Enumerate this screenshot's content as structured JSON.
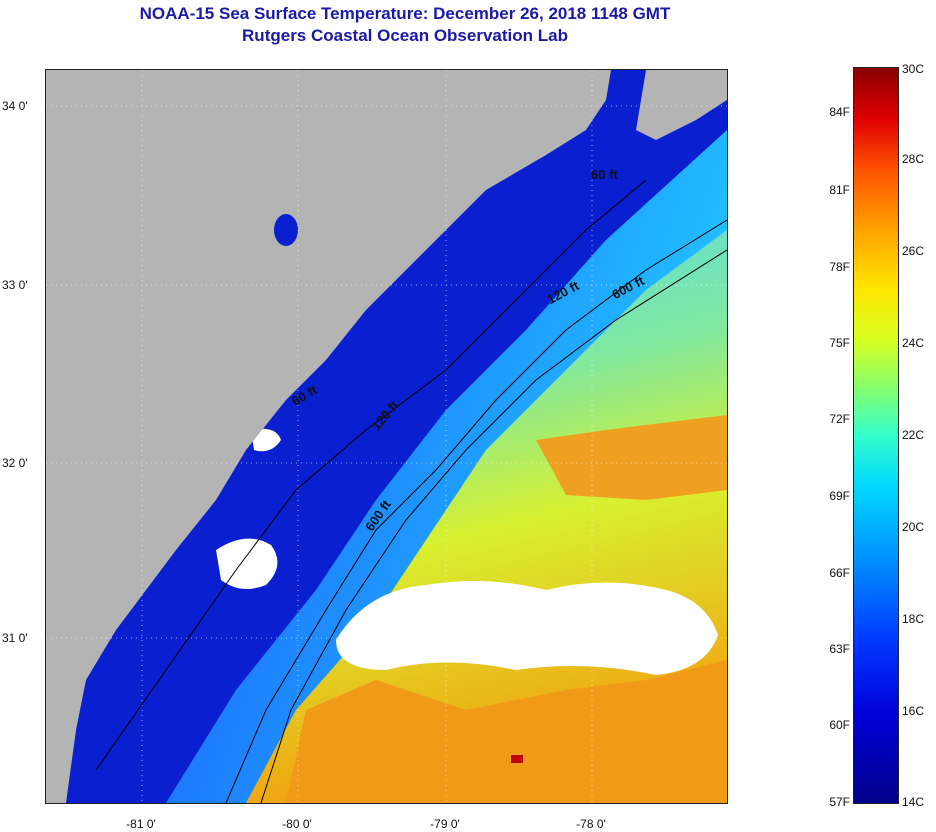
{
  "header": {
    "title": "NOAA-15 Sea Surface Temperature:  December 26, 2018 1148 GMT",
    "subtitle": "Rutgers Coastal Ocean Observation Lab"
  },
  "map": {
    "lat_labels": [
      "34 0'",
      "33 0'",
      "32 0'",
      "31 0'"
    ],
    "lon_labels": [
      "-81 0'",
      "-80 0'",
      "-79 0'",
      "-78 0'"
    ],
    "isobath_labels": [
      "60 ft",
      "120 ft",
      "600 ft",
      "60 ft",
      "120 ft",
      "600 ft"
    ],
    "colors": {
      "land": "#b4b4b4",
      "clouds": "#ffffff",
      "cold_shelf": "#0a1fd0"
    }
  },
  "colorbar": {
    "fahrenheit_labels": [
      "84F",
      "81F",
      "78F",
      "75F",
      "72F",
      "69F",
      "66F",
      "63F",
      "60F",
      "57F"
    ],
    "celsius_labels": [
      "30C",
      "28C",
      "26C",
      "24C",
      "22C",
      "20C",
      "18C",
      "16C",
      "14C"
    ],
    "range_c": [
      14,
      30
    ],
    "range_f": [
      57,
      86
    ]
  }
}
